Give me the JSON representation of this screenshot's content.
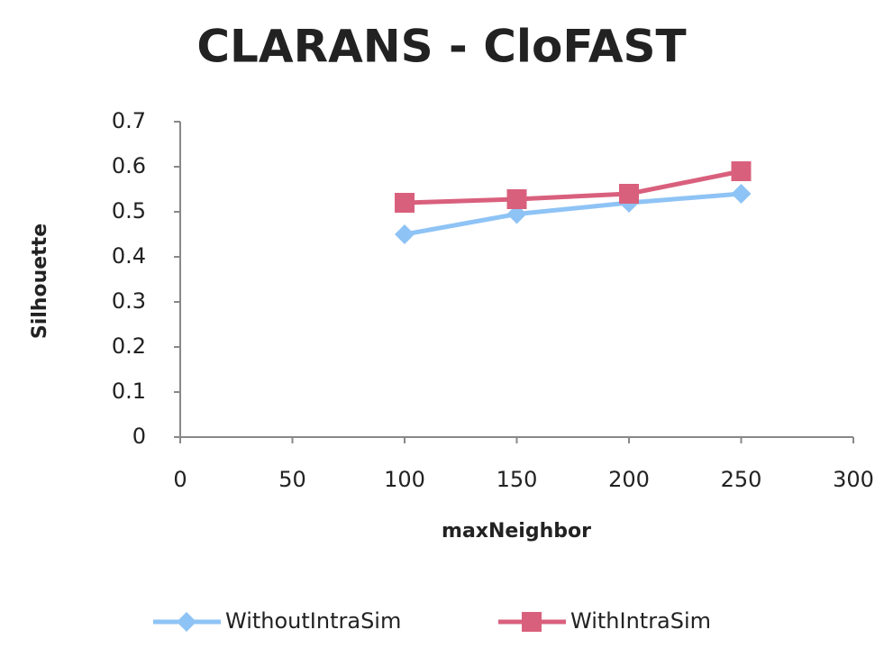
{
  "chart_data": {
    "type": "line",
    "title": "CLARANS - CloFAST",
    "x_label": "maxNeighbor",
    "y_label": "Silhouette",
    "x": [
      100,
      150,
      200,
      250
    ],
    "series": [
      {
        "name": "WithoutIntraSim",
        "color": "#8ec3f5",
        "marker": "diamond",
        "values": [
          0.45,
          0.495,
          0.52,
          0.54
        ]
      },
      {
        "name": "WithIntraSim",
        "color": "#d9607d",
        "marker": "square",
        "values": [
          0.52,
          0.528,
          0.54,
          0.59
        ]
      }
    ],
    "xlim": [
      0,
      300
    ],
    "xticks": [
      0,
      50,
      100,
      150,
      200,
      250,
      300
    ],
    "ylim": [
      0,
      0.7
    ],
    "yticks": [
      0,
      0.1,
      0.2,
      0.3,
      0.4,
      0.5,
      0.6,
      0.7
    ],
    "grid": false,
    "legend": "bottom"
  }
}
